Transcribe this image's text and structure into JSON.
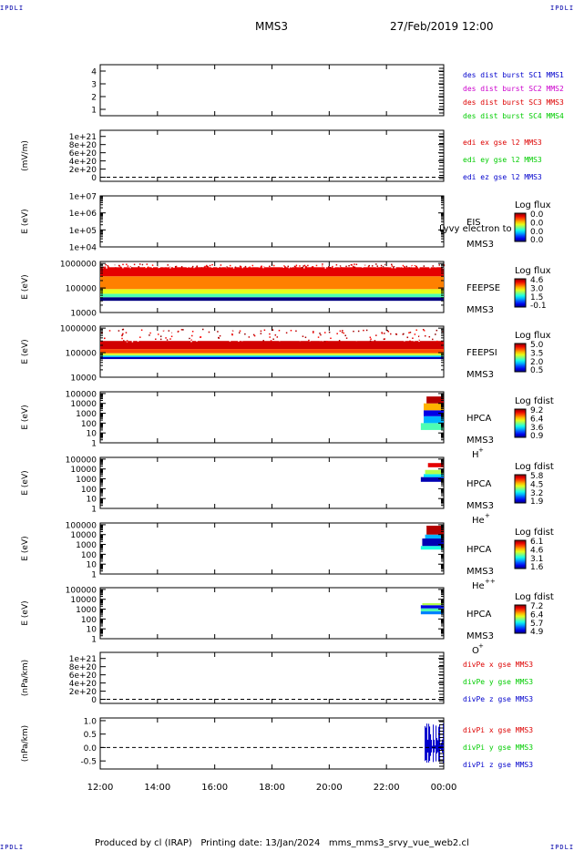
{
  "header": {
    "corner_label": "IPDLI",
    "spacecraft": "MMS3",
    "datetime": "27/Feb/2019 12:00"
  },
  "footer": {
    "text": "Produced by cl (IRAP)   Printing date: 13/Jan/2024   mms_mms3_srvy_vue_web2.cl"
  },
  "colors": {
    "axis": "#000000",
    "red": "#dd0000",
    "green": "#00cc00",
    "blue": "#0000cc",
    "magenta": "#cc00cc"
  },
  "chart_data": [
    {
      "type": "line",
      "panel": "des_dist_burst",
      "ylim": [
        0.5,
        4.5
      ],
      "y_ticks": [
        1,
        2,
        3,
        4
      ],
      "y_tick_labels": [
        "1",
        "2",
        "3",
        "4"
      ],
      "ylabel": "",
      "legend": [
        {
          "name": "des dist burst SC1 MMS1",
          "color": "#0000cc"
        },
        {
          "name": "des dist burst SC2 MMS2",
          "color": "#cc00cc"
        },
        {
          "name": "des dist burst SC3 MMS3",
          "color": "#dd0000"
        },
        {
          "name": "des dist burst SC4 MMS4",
          "color": "#00cc00"
        }
      ],
      "points": [
        {
          "x": 23.95,
          "y": 4.0
        },
        {
          "x": 23.95,
          "y": 2.0
        },
        {
          "x": 23.95,
          "y": 1.0
        }
      ]
    },
    {
      "type": "line",
      "panel": "edi_e_gse",
      "ylabel": "(mV/m)",
      "ylim": [
        -1e+20,
        1.15e+21
      ],
      "y_ticks": [
        0,
        2e+20,
        4e+20,
        6e+20,
        8e+20,
        1e+21
      ],
      "y_tick_labels": [
        "0",
        "2e+20",
        "4e+20",
        "6e+20",
        "8e+20",
        "1e+21"
      ],
      "zero_line": true,
      "legend": [
        {
          "name": "edi ex gse l2 MMS3",
          "color": "#dd0000"
        },
        {
          "name": "edi ey gse l2 MMS3",
          "color": "#00cc00"
        },
        {
          "name": "edi ez gse l2 MMS3",
          "color": "#0000cc"
        }
      ]
    },
    {
      "type": "heatmap",
      "panel": "EIS",
      "ylabel": "E (eV)",
      "yscale": "log",
      "ylim": [
        10000.0,
        10000000.0
      ],
      "y_tick_labels": [
        "1e+04",
        "1e+05",
        "1e+06",
        "1e+07"
      ],
      "instrument": "EIS",
      "spacecraft": "MMS3",
      "overlay_text": "Lyvy electron to",
      "colorbar_title": "Log flux",
      "colorbar_ticks": [
        "0.0",
        "0.0",
        "0.0",
        "0.0"
      ],
      "bands": []
    },
    {
      "type": "heatmap",
      "panel": "FEEPSE",
      "ylabel": "E (eV)",
      "yscale": "log",
      "ylim": [
        10000.0,
        1200000.0
      ],
      "y_tick_labels": [
        "10000",
        "100000",
        "1000000"
      ],
      "instrument": "FEEPSE",
      "spacecraft": "MMS3",
      "colorbar_title": "Log flux",
      "colorbar_ticks": [
        "4.6",
        "3.0",
        "1.5",
        "-0.1"
      ],
      "bands": [
        {
          "x": [
            12.0,
            24.0
          ],
          "e": [
            30000,
            42000
          ],
          "level": 0.0
        },
        {
          "x": [
            12.0,
            24.0
          ],
          "e": [
            42000,
            58000
          ],
          "level": 0.45
        },
        {
          "x": [
            12.0,
            24.0
          ],
          "e": [
            58000,
            90000
          ],
          "level": 0.6
        },
        {
          "x": [
            12.0,
            24.0
          ],
          "e": [
            90000,
            300000
          ],
          "level": 0.75
        },
        {
          "x": [
            12.0,
            24.0
          ],
          "e": [
            300000,
            700000
          ],
          "level": 0.9
        }
      ]
    },
    {
      "type": "heatmap",
      "panel": "FEEPSI",
      "ylabel": "E (eV)",
      "yscale": "log",
      "ylim": [
        10000.0,
        1200000.0
      ],
      "y_tick_labels": [
        "10000",
        "100000",
        "1000000"
      ],
      "instrument": "FEEPSI",
      "spacecraft": "MMS3",
      "colorbar_title": "Log flux",
      "colorbar_ticks": [
        "5.0",
        "3.5",
        "2.0",
        "0.5"
      ],
      "bands": [
        {
          "x": [
            12.0,
            24.0
          ],
          "e": [
            55000,
            66000
          ],
          "level": 0.05
        },
        {
          "x": [
            12.0,
            24.0
          ],
          "e": [
            66000,
            74000
          ],
          "level": 0.3
        },
        {
          "x": [
            12.0,
            24.0
          ],
          "e": [
            74000,
            80000
          ],
          "level": 0.45
        },
        {
          "x": [
            12.0,
            24.0
          ],
          "e": [
            80000,
            95000
          ],
          "level": 0.6
        },
        {
          "x": [
            12.0,
            24.0
          ],
          "e": [
            95000,
            140000
          ],
          "level": 0.8
        },
        {
          "x": [
            12.0,
            24.0
          ],
          "e": [
            140000,
            300000
          ],
          "level": 0.92
        }
      ]
    },
    {
      "type": "heatmap",
      "panel": "HPCA_H",
      "ylabel": "E (eV)",
      "yscale": "log",
      "ylim": [
        1,
        150000.0
      ],
      "y_tick_labels": [
        "1",
        "10",
        "100",
        "1000",
        "10000",
        "100000"
      ],
      "instrument": "HPCA",
      "spacecraft": "MMS3",
      "species": "H",
      "species_charge": "+",
      "colorbar_title": "Log fdist",
      "colorbar_ticks": [
        "9.2",
        "6.4",
        "3.6",
        "0.9"
      ],
      "bands": [
        {
          "x": [
            23.2,
            24.0
          ],
          "e": [
            20,
            100
          ],
          "level": 0.45
        },
        {
          "x": [
            23.3,
            24.0
          ],
          "e": [
            100,
            500
          ],
          "level": 0.3
        },
        {
          "x": [
            23.3,
            24.0
          ],
          "e": [
            500,
            2000
          ],
          "level": 0.1
        },
        {
          "x": [
            23.3,
            24.0
          ],
          "e": [
            2000,
            10000
          ],
          "level": 0.7
        },
        {
          "x": [
            23.4,
            24.0
          ],
          "e": [
            10000,
            50000
          ],
          "level": 0.95
        }
      ]
    },
    {
      "type": "heatmap",
      "panel": "HPCA_He+",
      "ylabel": "E (eV)",
      "yscale": "log",
      "ylim": [
        1,
        150000.0
      ],
      "y_tick_labels": [
        "1",
        "10",
        "100",
        "1000",
        "10000",
        "100000"
      ],
      "instrument": "HPCA",
      "spacecraft": "MMS3",
      "species": "He",
      "species_charge": "+",
      "colorbar_title": "Log fdist",
      "colorbar_ticks": [
        "5.8",
        "4.5",
        "3.2",
        "1.9"
      ],
      "bands": [
        {
          "x": [
            23.2,
            24.0
          ],
          "e": [
            500,
            1500
          ],
          "level": 0.05
        },
        {
          "x": [
            23.3,
            24.0
          ],
          "e": [
            1500,
            3000
          ],
          "level": 0.35
        },
        {
          "x": [
            23.35,
            24.0
          ],
          "e": [
            3000,
            8000
          ],
          "level": 0.55
        },
        {
          "x": [
            23.45,
            24.0
          ],
          "e": [
            15000,
            40000
          ],
          "level": 0.9
        }
      ]
    },
    {
      "type": "heatmap",
      "panel": "HPCA_He++",
      "ylabel": "E (eV)",
      "yscale": "log",
      "ylim": [
        1,
        150000.0
      ],
      "y_tick_labels": [
        "1",
        "10",
        "100",
        "1000",
        "10000",
        "100000"
      ],
      "instrument": "HPCA",
      "spacecraft": "MMS3",
      "species": "He",
      "species_charge": "++",
      "colorbar_title": "Log fdist",
      "colorbar_ticks": [
        "6.1",
        "4.6",
        "3.1",
        "1.6"
      ],
      "bands": [
        {
          "x": [
            23.2,
            24.0
          ],
          "e": [
            300,
            700
          ],
          "level": 0.4
        },
        {
          "x": [
            23.25,
            24.0
          ],
          "e": [
            700,
            4000
          ],
          "level": 0.05
        },
        {
          "x": [
            23.35,
            24.0
          ],
          "e": [
            4000,
            10000
          ],
          "level": 0.3
        },
        {
          "x": [
            23.4,
            24.0
          ],
          "e": [
            10000,
            80000
          ],
          "level": 0.95
        }
      ]
    },
    {
      "type": "heatmap",
      "panel": "HPCA_O+",
      "ylabel": "E (eV)",
      "yscale": "log",
      "ylim": [
        1,
        150000.0
      ],
      "y_tick_labels": [
        "1",
        "10",
        "100",
        "1000",
        "10000",
        "100000"
      ],
      "instrument": "HPCA",
      "spacecraft": "MMS3",
      "species": "O",
      "species_charge": "+",
      "colorbar_title": "Log fdist",
      "colorbar_ticks": [
        "7.2",
        "6.4",
        "5.7",
        "4.9"
      ],
      "bands": [
        {
          "x": [
            23.2,
            24.0
          ],
          "e": [
            300,
            600
          ],
          "level": 0.25
        },
        {
          "x": [
            23.2,
            24.0
          ],
          "e": [
            600,
            1200
          ],
          "level": 0.45
        },
        {
          "x": [
            23.2,
            24.0
          ],
          "e": [
            1200,
            2500
          ],
          "level": 0.1
        },
        {
          "x": [
            23.25,
            24.0
          ],
          "e": [
            2500,
            4000
          ],
          "level": 0.55
        }
      ]
    },
    {
      "type": "line",
      "panel": "divPe_gse",
      "ylabel": "(nPa/km)",
      "ylim": [
        -1e+20,
        1.15e+21
      ],
      "y_ticks": [
        0,
        2e+20,
        4e+20,
        6e+20,
        8e+20,
        1e+21
      ],
      "y_tick_labels": [
        "0",
        "2e+20",
        "4e+20",
        "6e+20",
        "8e+20",
        "1e+21"
      ],
      "zero_line": true,
      "legend": [
        {
          "name": "divPe x gse MMS3",
          "color": "#dd0000"
        },
        {
          "name": "divPe y gse MMS3",
          "color": "#00cc00"
        },
        {
          "name": "divPe z gse MMS3",
          "color": "#0000cc"
        }
      ]
    },
    {
      "type": "line",
      "panel": "divPi_gse",
      "ylabel": "(nPa/km)",
      "ylim": [
        -0.8,
        1.1
      ],
      "y_ticks": [
        -0.5,
        0.0,
        0.5,
        1.0
      ],
      "y_tick_labels": [
        "-0.5",
        "0.0",
        "0.5",
        "1.0"
      ],
      "zero_line": true,
      "legend": [
        {
          "name": "divPi x gse MMS3",
          "color": "#dd0000"
        },
        {
          "name": "divPi y gse MMS3",
          "color": "#00cc00"
        },
        {
          "name": "divPi z gse MMS3",
          "color": "#0000cc"
        }
      ],
      "burst": {
        "x": [
          23.35,
          24.0
        ],
        "y": [
          -0.6,
          0.95
        ],
        "color": "#0000cc"
      }
    }
  ],
  "x_axis": {
    "xlim": [
      12.0,
      24.0
    ],
    "ticks": [
      12,
      14,
      16,
      18,
      20,
      22,
      24
    ],
    "tick_labels": [
      "12:00",
      "14:00",
      "16:00",
      "18:00",
      "20:00",
      "22:00",
      "00:00"
    ]
  }
}
